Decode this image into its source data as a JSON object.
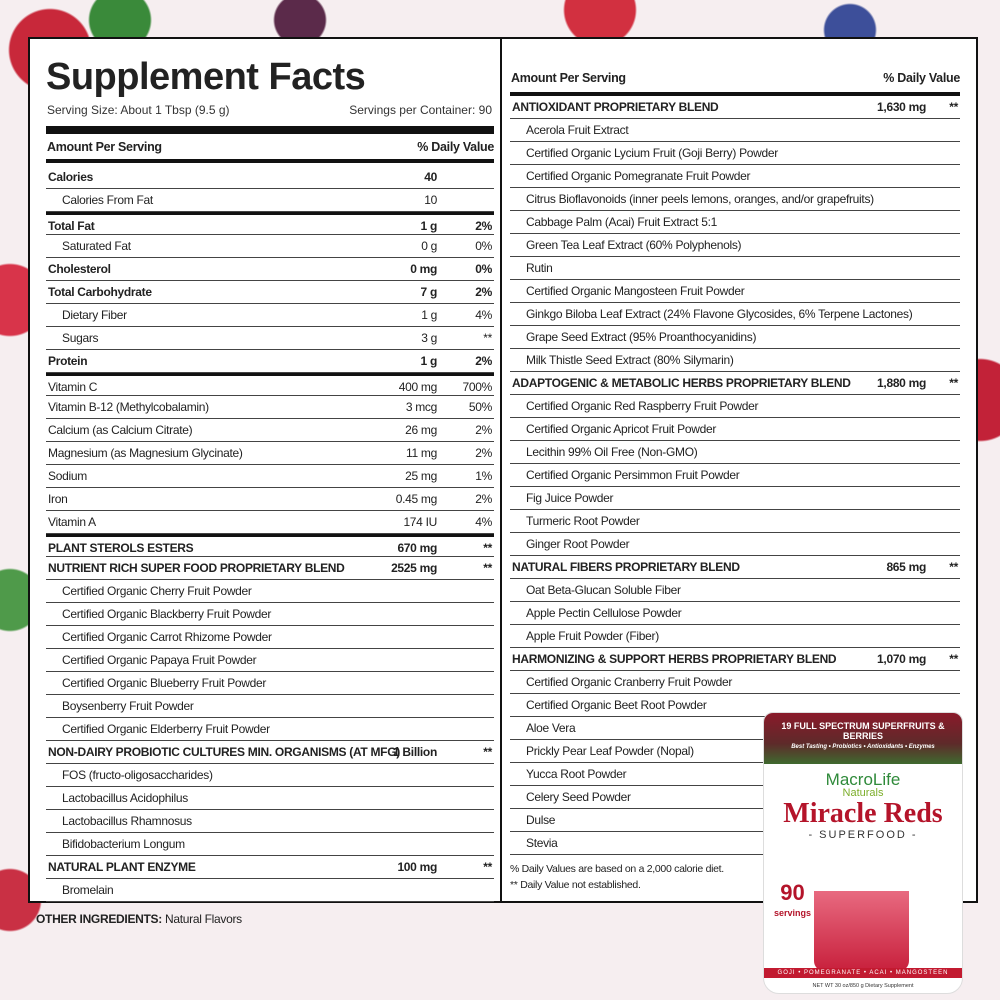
{
  "title": "Supplement Facts",
  "serving_size": "Serving Size:  About 1 Tbsp (9.5 g)",
  "servings_per_container": "Servings per Container: 90",
  "left_header": {
    "amount": "Amount Per Serving",
    "dv": "% Daily Value"
  },
  "right_header": {
    "amount": "Amount Per Serving",
    "dv": "% Daily Value"
  },
  "left_rows": [
    {
      "name": "Calories",
      "amount": "40",
      "dv": "",
      "style": "b"
    },
    {
      "name": "Calories From Fat",
      "amount": "10",
      "dv": "",
      "style": "ind"
    },
    {
      "name": "Total Fat",
      "amount": "1 g",
      "dv": "2%",
      "style": "b thick"
    },
    {
      "name": "Saturated Fat",
      "amount": "0 g",
      "dv": "0%",
      "style": "ind"
    },
    {
      "name": "Cholesterol",
      "amount": "0 mg",
      "dv": "0%",
      "style": "b"
    },
    {
      "name": "Total Carbohydrate",
      "amount": "7 g",
      "dv": "2%",
      "style": "b"
    },
    {
      "name": "Dietary Fiber",
      "amount": "1 g",
      "dv": "4%",
      "style": "ind"
    },
    {
      "name": "Sugars",
      "amount": "3 g",
      "dv": "**",
      "style": "ind"
    },
    {
      "name": "Protein",
      "amount": "1 g",
      "dv": "2%",
      "style": "b"
    },
    {
      "name": "Vitamin C",
      "amount": "400 mg",
      "dv": "700%",
      "style": "thick"
    },
    {
      "name": "Vitamin B-12 (Methylcobalamin)",
      "amount": "3 mcg",
      "dv": "50%",
      "style": ""
    },
    {
      "name": "Calcium (as Calcium Citrate)",
      "amount": "26 mg",
      "dv": "2%",
      "style": ""
    },
    {
      "name": "Magnesium (as Magnesium Glycinate)",
      "amount": "11 mg",
      "dv": "2%",
      "style": ""
    },
    {
      "name": "Sodium",
      "amount": "25 mg",
      "dv": "1%",
      "style": ""
    },
    {
      "name": "Iron",
      "amount": "0.45 mg",
      "dv": "2%",
      "style": ""
    },
    {
      "name": "Vitamin A",
      "amount": "174 IU",
      "dv": "4%",
      "style": ""
    },
    {
      "name": "PLANT STEROLS ESTERS",
      "amount": "670 mg",
      "dv": "**",
      "style": "b thick"
    },
    {
      "name": "NUTRIENT RICH SUPER FOOD PROPRIETARY BLEND",
      "amount": "2525 mg",
      "dv": "**",
      "style": "b"
    },
    {
      "name": "Certified Organic Cherry Fruit Powder",
      "amount": "",
      "dv": "",
      "style": "ind"
    },
    {
      "name": "Certified Organic Blackberry Fruit Powder",
      "amount": "",
      "dv": "",
      "style": "ind"
    },
    {
      "name": "Certified Organic Carrot Rhizome Powder",
      "amount": "",
      "dv": "",
      "style": "ind"
    },
    {
      "name": "Certified Organic Papaya Fruit Powder",
      "amount": "",
      "dv": "",
      "style": "ind"
    },
    {
      "name": "Certified Organic Blueberry Fruit Powder",
      "amount": "",
      "dv": "",
      "style": "ind"
    },
    {
      "name": "Boysenberry Fruit Powder",
      "amount": "",
      "dv": "",
      "style": "ind"
    },
    {
      "name": "Certified Organic Elderberry Fruit Powder",
      "amount": "",
      "dv": "",
      "style": "ind"
    },
    {
      "name": "NON-DAIRY PROBIOTIC CULTURES MIN. ORGANISMS (AT MFG)",
      "amount": "1 Billion",
      "dv": "**",
      "style": "b"
    },
    {
      "name": "FOS (fructo-oligosaccharides)",
      "amount": "",
      "dv": "",
      "style": "ind"
    },
    {
      "name": "Lactobacillus Acidophilus",
      "amount": "",
      "dv": "",
      "style": "ind"
    },
    {
      "name": "Lactobacillus Rhamnosus",
      "amount": "",
      "dv": "",
      "style": "ind"
    },
    {
      "name": "Bifidobacterium Longum",
      "amount": "",
      "dv": "",
      "style": "ind"
    },
    {
      "name": "NATURAL PLANT ENZYME",
      "amount": "100 mg",
      "dv": "**",
      "style": "b"
    },
    {
      "name": "Bromelain",
      "amount": "",
      "dv": "",
      "style": "ind"
    }
  ],
  "right_rows": [
    {
      "name": "ANTIOXIDANT PROPRIETARY BLEND",
      "amount": "1,630 mg",
      "dv": "**",
      "style": "b"
    },
    {
      "name": "Acerola Fruit Extract",
      "amount": "",
      "dv": "",
      "style": "ind"
    },
    {
      "name": "Certified Organic Lycium Fruit (Goji Berry) Powder",
      "amount": "",
      "dv": "",
      "style": "ind"
    },
    {
      "name": "Certified Organic Pomegranate Fruit Powder",
      "amount": "",
      "dv": "",
      "style": "ind"
    },
    {
      "name": "Citrus Bioflavonoids (inner peels lemons, oranges, and/or grapefruits)",
      "amount": "",
      "dv": "",
      "style": "ind"
    },
    {
      "name": "Cabbage Palm (Acai) Fruit Extract 5:1",
      "amount": "",
      "dv": "",
      "style": "ind"
    },
    {
      "name": "Green Tea Leaf Extract (60% Polyphenols)",
      "amount": "",
      "dv": "",
      "style": "ind"
    },
    {
      "name": "Rutin",
      "amount": "",
      "dv": "",
      "style": "ind"
    },
    {
      "name": "Certified Organic Mangosteen Fruit Powder",
      "amount": "",
      "dv": "",
      "style": "ind"
    },
    {
      "name": "Ginkgo Biloba Leaf Extract (24% Flavone Glycosides, 6% Terpene Lactones)",
      "amount": "",
      "dv": "",
      "style": "ind"
    },
    {
      "name": "Grape Seed Extract (95% Proanthocyanidins)",
      "amount": "",
      "dv": "",
      "style": "ind"
    },
    {
      "name": "Milk Thistle Seed Extract (80% Silymarin)",
      "amount": "",
      "dv": "",
      "style": "ind"
    },
    {
      "name": "ADAPTOGENIC & METABOLIC HERBS PROPRIETARY BLEND",
      "amount": "1,880 mg",
      "dv": "**",
      "style": "b"
    },
    {
      "name": "Certified Organic Red Raspberry Fruit Powder",
      "amount": "",
      "dv": "",
      "style": "ind"
    },
    {
      "name": "Certified Organic Apricot Fruit Powder",
      "amount": "",
      "dv": "",
      "style": "ind"
    },
    {
      "name": "Lecithin 99% Oil Free (Non-GMO)",
      "amount": "",
      "dv": "",
      "style": "ind"
    },
    {
      "name": "Certified Organic Persimmon Fruit Powder",
      "amount": "",
      "dv": "",
      "style": "ind"
    },
    {
      "name": "Fig Juice Powder",
      "amount": "",
      "dv": "",
      "style": "ind"
    },
    {
      "name": "Turmeric Root Powder",
      "amount": "",
      "dv": "",
      "style": "ind"
    },
    {
      "name": "Ginger Root Powder",
      "amount": "",
      "dv": "",
      "style": "ind"
    },
    {
      "name": "NATURAL FIBERS PROPRIETARY BLEND",
      "amount": "865 mg",
      "dv": "**",
      "style": "b"
    },
    {
      "name": "Oat Beta-Glucan Soluble Fiber",
      "amount": "",
      "dv": "",
      "style": "ind"
    },
    {
      "name": "Apple Pectin Cellulose Powder",
      "amount": "",
      "dv": "",
      "style": "ind"
    },
    {
      "name": "Apple Fruit Powder (Fiber)",
      "amount": "",
      "dv": "",
      "style": "ind"
    },
    {
      "name": "HARMONIZING & SUPPORT HERBS PROPRIETARY BLEND",
      "amount": "1,070 mg",
      "dv": "**",
      "style": "b"
    },
    {
      "name": "Certified Organic Cranberry Fruit Powder",
      "amount": "",
      "dv": "",
      "style": "ind"
    },
    {
      "name": "Certified Organic Beet Root Powder",
      "amount": "",
      "dv": "",
      "style": "ind"
    },
    {
      "name": "Aloe Vera",
      "amount": "",
      "dv": "",
      "style": "ind"
    },
    {
      "name": "Prickly Pear Leaf Powder (Nopal)",
      "amount": "",
      "dv": "",
      "style": "ind"
    },
    {
      "name": "Yucca Root Powder",
      "amount": "",
      "dv": "",
      "style": "ind"
    },
    {
      "name": "Celery Seed Powder",
      "amount": "",
      "dv": "",
      "style": "ind"
    },
    {
      "name": "Dulse",
      "amount": "",
      "dv": "",
      "style": "ind"
    },
    {
      "name": "Stevia",
      "amount": "",
      "dv": "",
      "style": "ind"
    }
  ],
  "footnotes": [
    "% Daily Values are based on a 2,000 calorie diet.",
    "** Daily Value not established."
  ],
  "other_ingredients": {
    "label": "OTHER INGREDIENTS:",
    "value": " Natural Flavors"
  },
  "product": {
    "band": "19 FULL SPECTRUM SUPERFRUITS & BERRIES",
    "tagline": "Best Tasting • Probiotics • Antioxidants • Enzymes",
    "brand": "MacroLife",
    "brand_sub": "Naturals",
    "name": "Miracle Reds",
    "sub": "- SUPERFOOD -",
    "servings": "90",
    "servings_label": "servings",
    "fruits": "GOJI • POMEGRANATE • ACAI • MANGOSTEEN",
    "net": "NET WT 30 oz/850 g   Dietary Supplement"
  }
}
